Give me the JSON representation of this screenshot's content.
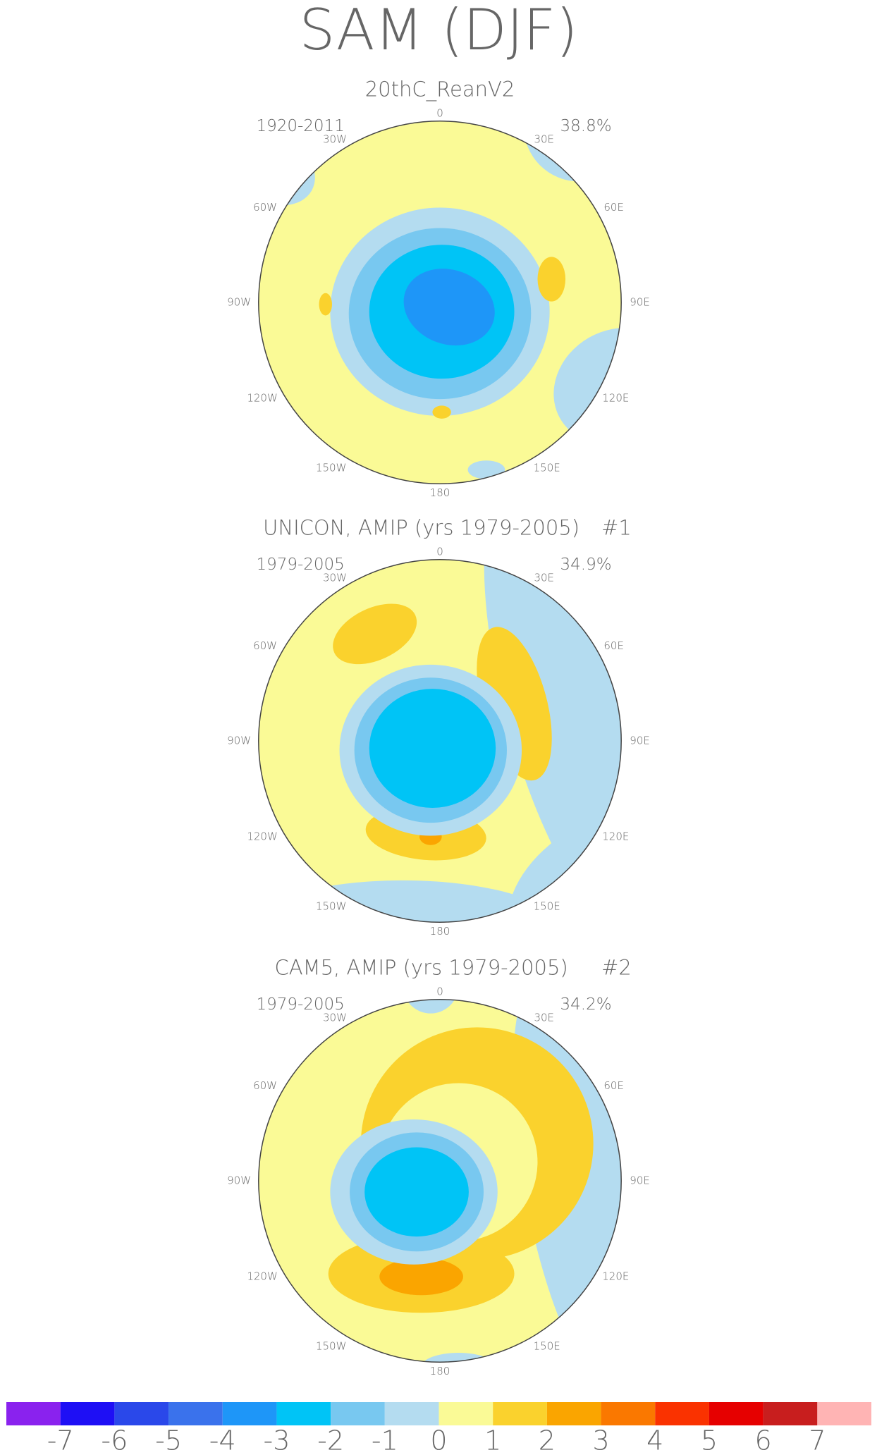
{
  "title": "SAM (DJF)",
  "panels": [
    {
      "title": "20thC_ReanV2",
      "period": "1920-2011",
      "variance": "38.8%"
    },
    {
      "title": "UNICON, AMIP (yrs 1979-2005)",
      "number": "#1",
      "period": "1979-2005",
      "variance": "34.9%"
    },
    {
      "title": "CAM5, AMIP (yrs 1979-2005)",
      "number": "#2",
      "period": "1979-2005",
      "variance": "34.2%"
    }
  ],
  "lon_labels": [
    "0",
    "30E",
    "60E",
    "90E",
    "120E",
    "150E",
    "180",
    "150W",
    "120W",
    "90W",
    "60W",
    "30W"
  ],
  "colorbar": {
    "colors": [
      "#8a22ee",
      "#1e0ff5",
      "#2a48ea",
      "#3a72ec",
      "#1e96f8",
      "#00c4f6",
      "#78c8f0",
      "#b4dcf0",
      "#fafa96",
      "#fad22d",
      "#faa500",
      "#fa7800",
      "#fa3200",
      "#e60000",
      "#c81e1e",
      "#ffb4b4"
    ],
    "ticks": [
      -7,
      -6,
      -5,
      -4,
      -3,
      -2,
      -1,
      0,
      1,
      2,
      3,
      4,
      5,
      6,
      7
    ]
  }
}
